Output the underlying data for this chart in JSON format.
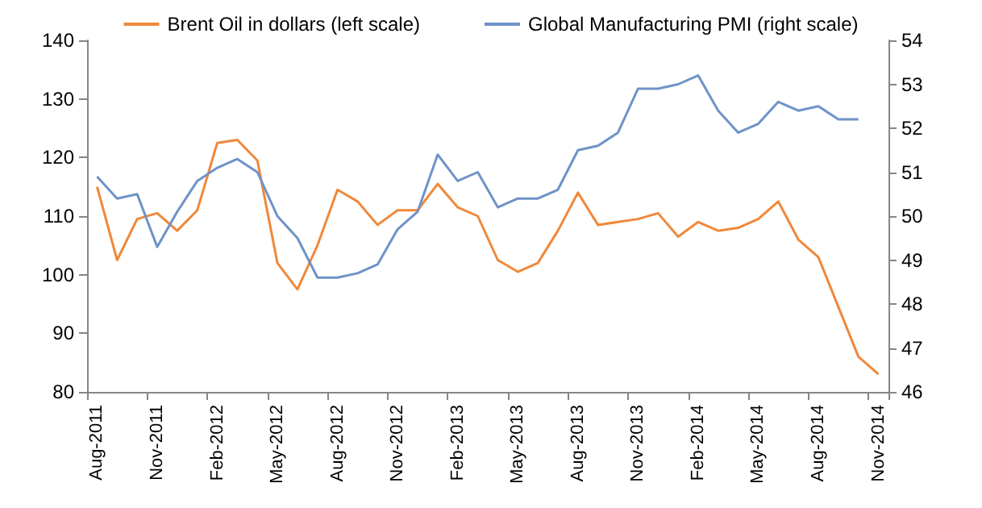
{
  "chart_data": {
    "type": "line",
    "categories": [
      "Aug-2011",
      null,
      null,
      "Nov-2011",
      null,
      null,
      "Feb-2012",
      null,
      null,
      "May-2012",
      null,
      null,
      "Aug-2012",
      null,
      null,
      "Nov-2012",
      null,
      null,
      "Feb-2013",
      null,
      null,
      "May-2013",
      null,
      null,
      "Aug-2013",
      null,
      null,
      "Nov-2013",
      null,
      null,
      "Feb-2014",
      null,
      null,
      "May-2014",
      null,
      null,
      "Aug-2014",
      null,
      null,
      "Nov-2014"
    ],
    "series": [
      {
        "name": "Brent Oil in dollars (left scale)",
        "color": "#f0883a",
        "values": [
          115,
          102.5,
          109.5,
          110.5,
          107.5,
          111,
          122.5,
          123,
          119.5,
          102,
          97.5,
          105,
          114.5,
          112.5,
          108.5,
          111,
          111,
          115.5,
          111.5,
          110,
          102.5,
          100.5,
          102,
          107.5,
          114,
          108.5,
          109,
          109.5,
          110.5,
          106.5,
          109,
          107.5,
          108,
          109.5,
          112.5,
          106,
          103,
          94.5,
          86,
          83
        ]
      },
      {
        "name": "Global Manufacturing PMI (right scale)",
        "color": "#6f93c8",
        "axis": "y2",
        "values": [
          50.9,
          50.4,
          50.5,
          49.3,
          50.1,
          50.8,
          51.1,
          51.3,
          51.0,
          50.0,
          49.5,
          48.6,
          48.6,
          48.7,
          48.9,
          49.7,
          50.1,
          51.4,
          50.8,
          51.0,
          50.2,
          50.4,
          50.4,
          50.6,
          51.5,
          51.6,
          51.9,
          52.9,
          52.9,
          53.0,
          53.2,
          52.4,
          51.9,
          52.1,
          52.6,
          52.4,
          52.5,
          52.2,
          52.2,
          null
        ]
      }
    ],
    "ylim": [
      80,
      140
    ],
    "yticks": [
      80,
      90,
      100,
      110,
      120,
      130,
      140
    ],
    "y2lim": [
      46,
      54
    ],
    "y2ticks": [
      46,
      47,
      48,
      49,
      50,
      51,
      52,
      53,
      54
    ],
    "grid": false,
    "legend": "top",
    "marker": "none",
    "line_style": "solid"
  }
}
